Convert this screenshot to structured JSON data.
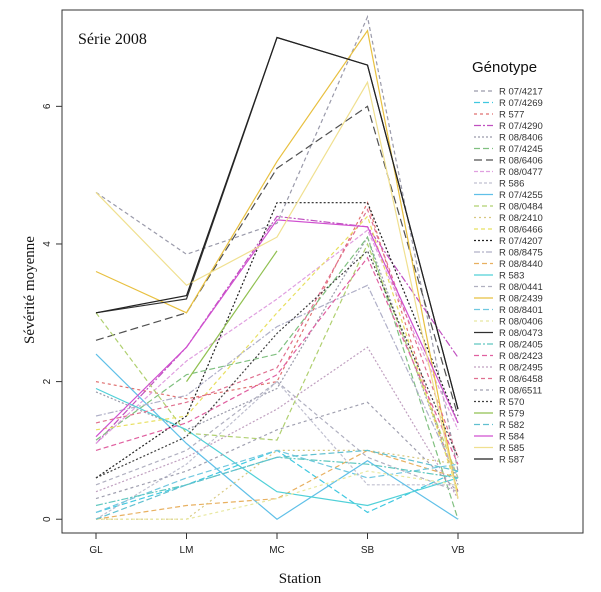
{
  "chart_data": {
    "type": "line",
    "title": "Série 2008",
    "xlabel": "Station",
    "ylabel": "Sévérité moyenne",
    "categories": [
      "GL",
      "LM",
      "MC",
      "SB",
      "VB"
    ],
    "yticks": [
      0,
      2,
      4,
      6
    ],
    "ylim": [
      -0.2,
      7.4
    ],
    "legend_title": "Génotype",
    "legend_position": "right",
    "grid": false,
    "series": [
      {
        "name": "R 07/4217",
        "color": "#9a9aaa",
        "dash": "4,3",
        "values": [
          4.75,
          3.85,
          4.3,
          7.3,
          0.7
        ]
      },
      {
        "name": "R 07/4269",
        "color": "#40c8e0",
        "dash": "6,3",
        "values": [
          0.1,
          0.5,
          1.0,
          0.1,
          0.7
        ]
      },
      {
        "name": "R 577",
        "color": "#e07070",
        "dash": "3,3",
        "values": [
          2.0,
          1.75,
          2.0,
          4.6,
          0.4
        ]
      },
      {
        "name": "R 07/4290",
        "color": "#c050c0",
        "dash": "7,2,2,2",
        "values": [
          1.1,
          2.5,
          4.4,
          4.25,
          2.35
        ]
      },
      {
        "name": "R 08/8406",
        "color": "#9a9aaa",
        "dash": "2,2",
        "values": [
          1.85,
          1.3,
          1.9,
          4.1,
          0.5
        ]
      },
      {
        "name": "R 07/4245",
        "color": "#80c080",
        "dash": "6,3",
        "values": [
          1.15,
          2.1,
          2.4,
          4.1,
          0.0
        ]
      },
      {
        "name": "R 08/6406",
        "color": "#505050",
        "dash": "8,4",
        "values": [
          2.6,
          3.0,
          5.1,
          6.0,
          1.5
        ]
      },
      {
        "name": "R 08/0477",
        "color": "#e0a0e0",
        "dash": "4,2",
        "values": [
          1.1,
          2.3,
          3.2,
          4.2,
          1.3
        ]
      },
      {
        "name": "R 586",
        "color": "#c0c0d0",
        "dash": "3,2",
        "values": [
          0.0,
          0.8,
          2.0,
          0.5,
          0.5
        ]
      },
      {
        "name": "R 07/4255",
        "color": "#60c0e8",
        "dash": "",
        "values": [
          2.4,
          1.1,
          0.0,
          0.85,
          0.0
        ]
      },
      {
        "name": "R 08/0484",
        "color": "#b0d070",
        "dash": "5,3",
        "values": [
          3.0,
          1.25,
          1.15,
          4.0,
          0.6
        ]
      },
      {
        "name": "R 08/2410",
        "color": "#d8c880",
        "dash": "2,3",
        "values": [
          0.0,
          0.0,
          1.0,
          1.0,
          0.8
        ]
      },
      {
        "name": "R 08/6466",
        "color": "#e8e060",
        "dash": "4,3",
        "values": [
          1.3,
          1.5,
          3.0,
          4.4,
          0.4
        ]
      },
      {
        "name": "R 07/4207",
        "color": "#202020",
        "dash": "2,2",
        "values": [
          0.6,
          1.5,
          4.6,
          4.6,
          1.4
        ]
      },
      {
        "name": "R 08/8475",
        "color": "#b0b0c8",
        "dash": "6,2,2,2",
        "values": [
          1.5,
          1.8,
          2.8,
          3.4,
          0.6
        ]
      },
      {
        "name": "R 08/8440",
        "color": "#e8b060",
        "dash": "5,3",
        "values": [
          0.0,
          0.2,
          0.3,
          1.0,
          0.6
        ]
      },
      {
        "name": "R 583",
        "color": "#50d0d8",
        "dash": "",
        "values": [
          1.9,
          1.3,
          0.4,
          0.2,
          0.6
        ]
      },
      {
        "name": "R 08/0441",
        "color": "#b0b0c0",
        "dash": "4,3",
        "values": [
          0.5,
          1.0,
          2.0,
          0.9,
          0.4
        ]
      },
      {
        "name": "R 08/2439",
        "color": "#e8c040",
        "dash": "",
        "values": [
          3.6,
          3.0,
          5.2,
          7.1,
          0.3
        ]
      },
      {
        "name": "R 08/8401",
        "color": "#70c8e0",
        "dash": "6,3",
        "values": [
          0.1,
          0.6,
          1.0,
          0.6,
          0.8
        ]
      },
      {
        "name": "R 08/0406",
        "color": "#e8e8a0",
        "dash": "3,3",
        "values": [
          0.0,
          0.0,
          0.3,
          0.7,
          0.5
        ]
      },
      {
        "name": "R 08/0473",
        "color": "#303030",
        "dash": "",
        "values": [
          3.0,
          3.2,
          7.0,
          6.6,
          1.6
        ]
      },
      {
        "name": "R 08/2405",
        "color": "#60c8c0",
        "dash": "7,2,2,2",
        "values": [
          0.2,
          0.5,
          0.9,
          0.8,
          0.6
        ]
      },
      {
        "name": "R 08/2423",
        "color": "#e060a0",
        "dash": "5,3",
        "values": [
          1.0,
          1.4,
          2.1,
          3.8,
          0.8
        ]
      },
      {
        "name": "R 08/2495",
        "color": "#c0a0c0",
        "dash": "2,2",
        "values": [
          0.4,
          0.9,
          1.6,
          2.5,
          0.3
        ]
      },
      {
        "name": "R 08/6458",
        "color": "#e07090",
        "dash": "4,3",
        "values": [
          1.4,
          1.7,
          2.2,
          4.5,
          0.9
        ]
      },
      {
        "name": "R 08/6511",
        "color": "#a0a0b0",
        "dash": "3,3",
        "values": [
          0.3,
          0.7,
          1.3,
          1.7,
          0.4
        ]
      },
      {
        "name": "R 570",
        "color": "#404040",
        "dash": "2,2",
        "values": [
          0.6,
          1.2,
          2.7,
          3.9,
          0.9
        ]
      },
      {
        "name": "R 579",
        "color": "#90c050",
        "dash": "",
        "values": [
          null,
          2.0,
          3.9,
          null,
          null
        ]
      },
      {
        "name": "R 582",
        "color": "#60c0d0",
        "dash": "6,3",
        "values": [
          0.0,
          0.5,
          0.9,
          1.0,
          0.7
        ]
      },
      {
        "name": "R 584",
        "color": "#d050d0",
        "dash": "",
        "values": [
          1.2,
          2.5,
          4.35,
          4.25,
          1.4
        ]
      },
      {
        "name": "R 585",
        "color": "#f0e090",
        "dash": "",
        "values": [
          4.75,
          3.4,
          4.1,
          6.35,
          0.3
        ]
      },
      {
        "name": "R 587",
        "color": "#222222",
        "dash": "",
        "values": [
          3.0,
          3.25,
          7.0,
          6.6,
          1.6
        ]
      }
    ]
  }
}
